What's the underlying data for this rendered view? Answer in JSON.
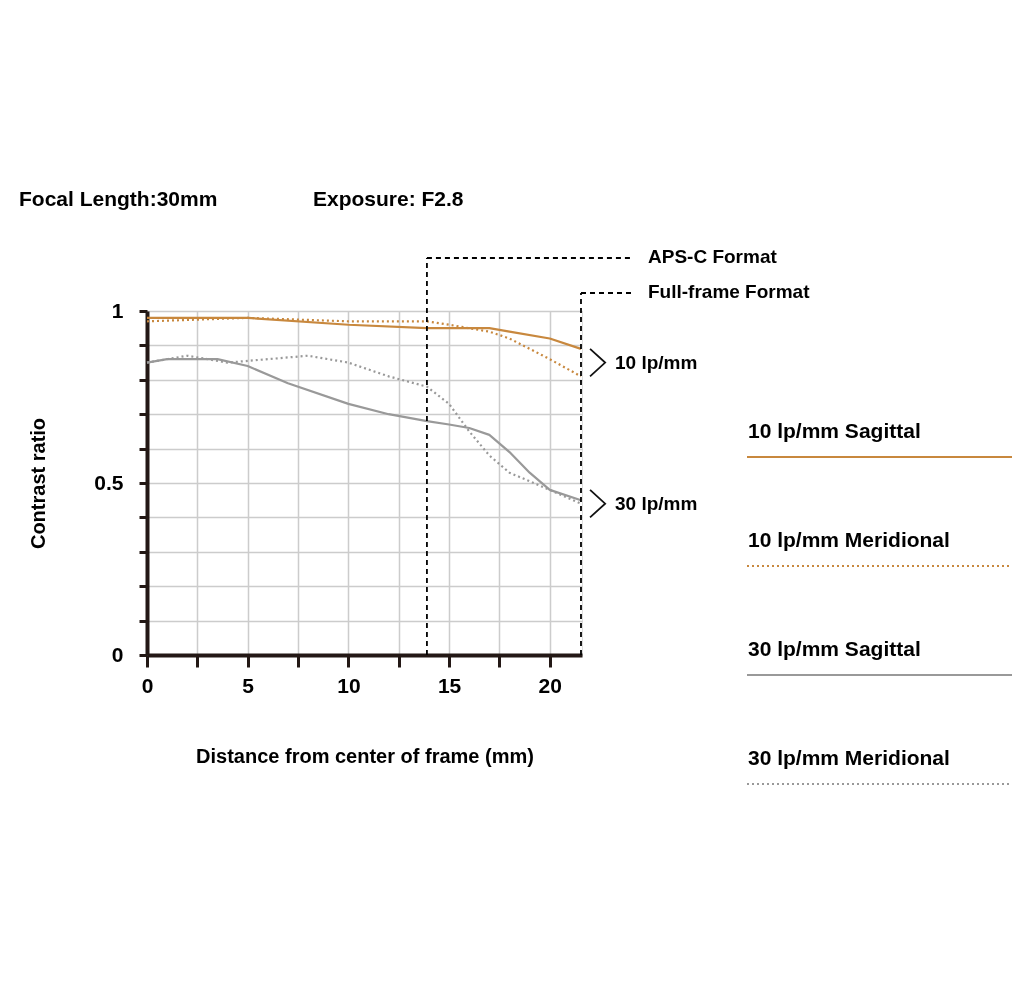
{
  "chart_data": {
    "type": "line",
    "title": "Focal Length:30mm",
    "subtitle": "Exposure: F2.8",
    "xlabel": "Distance from center of frame (mm)",
    "ylabel": "Contrast ratio",
    "xlim": [
      0,
      21.6
    ],
    "ylim": [
      0,
      1
    ],
    "xticks": [
      0,
      {
        "value": 2.5,
        "label": null
      },
      5,
      {
        "value": 7.5,
        "label": null
      },
      10,
      {
        "value": 12.5,
        "label": null
      },
      15,
      {
        "value": 17.5,
        "label": null
      },
      20
    ],
    "yticks": [
      0,
      {
        "value": 0.1,
        "label": null
      },
      {
        "value": 0.2,
        "label": null
      },
      {
        "value": 0.3,
        "label": null
      },
      {
        "value": 0.4,
        "label": null
      },
      0.5,
      {
        "value": 0.6,
        "label": null
      },
      {
        "value": 0.7,
        "label": null
      },
      {
        "value": 0.8,
        "label": null
      },
      {
        "value": 0.9,
        "label": null
      },
      1
    ],
    "grid": true,
    "legend": "right",
    "marker": "none",
    "series": [
      {
        "name": "10 lp/mm Sagittal",
        "color": "#c8883e",
        "line_style": "solid",
        "x": [
          0,
          5,
          10,
          13.9,
          17,
          18,
          20,
          21.55
        ],
        "values": [
          0.98,
          0.98,
          0.96,
          0.95,
          0.95,
          0.94,
          0.92,
          0.89
        ]
      },
      {
        "name": "10 lp/mm Meridional",
        "color": "#c8883e",
        "line_style": "dotted",
        "x": [
          0,
          5,
          10,
          13.9,
          15,
          16,
          17,
          18,
          20,
          21.55
        ],
        "values": [
          0.97,
          0.98,
          0.97,
          0.97,
          0.96,
          0.95,
          0.94,
          0.92,
          0.86,
          0.81
        ]
      },
      {
        "name": "30 lp/mm Sagittal",
        "color": "#999999",
        "line_style": "solid",
        "x": [
          0,
          1,
          2,
          3.5,
          5,
          7,
          10,
          12,
          13.9,
          15,
          16,
          17,
          18,
          19,
          20,
          21.55
        ],
        "values": [
          0.85,
          0.86,
          0.86,
          0.86,
          0.84,
          0.79,
          0.73,
          0.7,
          0.68,
          0.67,
          0.66,
          0.64,
          0.59,
          0.53,
          0.48,
          0.45
        ]
      },
      {
        "name": "30 lp/mm Meridional",
        "color": "#999999",
        "line_style": "dotted",
        "x": [
          0,
          2,
          4,
          6,
          8,
          10,
          12,
          13.9,
          15,
          16,
          17,
          18,
          20,
          21.55
        ],
        "values": [
          0.85,
          0.87,
          0.85,
          0.86,
          0.87,
          0.85,
          0.81,
          0.78,
          0.73,
          0.65,
          0.58,
          0.53,
          0.48,
          0.44
        ]
      }
    ],
    "ref_lines": [
      {
        "axis": "x",
        "value": 13.9,
        "label": "APS-C Format",
        "color": "#000000",
        "line_style": "dashed"
      },
      {
        "axis": "x",
        "value": 21.55,
        "label": "Full-frame Format",
        "color": "#000000",
        "line_style": "dashed"
      }
    ],
    "annotations": [
      {
        "text": "10 lp/mm",
        "x": 21.55,
        "y": 0.85
      },
      {
        "text": "30 lp/mm",
        "x": 21.55,
        "y": 0.44
      }
    ]
  }
}
